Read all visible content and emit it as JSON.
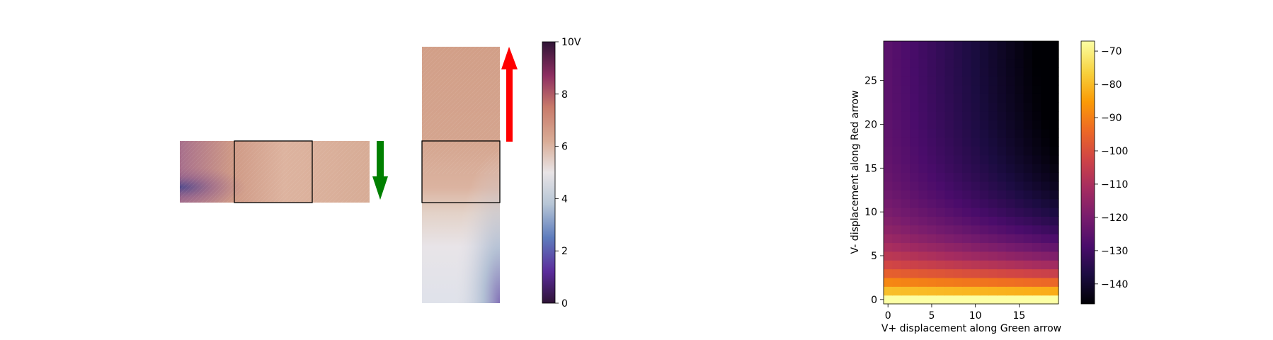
{
  "colors": {
    "green_arrow": "#008000",
    "red_arrow": "#ff0000",
    "frame": "#000000"
  },
  "chart_data": [
    {
      "type": "image",
      "panel": "horizontal potential strip",
      "colormap": "twilight_shifted",
      "colormap_colors": [
        "#2f1436",
        "#5b2c9b",
        "#5e7cbd",
        "#b7c6d6",
        "#e8e4e6",
        "#d9ac96",
        "#c87a6a",
        "#8e2f61",
        "#2f1436"
      ],
      "annotations": [
        {
          "type": "arrow",
          "color": "green",
          "direction": "down"
        }
      ]
    },
    {
      "type": "image",
      "panel": "vertical potential strip",
      "colormap": "twilight_shifted",
      "annotations": [
        {
          "type": "arrow",
          "color": "red",
          "direction": "up"
        }
      ],
      "colorbar": {
        "vmin": 0,
        "vmax": 10,
        "ticks": [
          0,
          2,
          4,
          6,
          8
        ],
        "tick_labels": [
          "0",
          "2",
          "4",
          "6",
          "8"
        ],
        "top_label": "10V"
      }
    },
    {
      "type": "heatmap",
      "colormap": "inferno",
      "colormap_colors": [
        "#000004",
        "#1b0c41",
        "#4a0c6b",
        "#781c6d",
        "#a52c60",
        "#cf4446",
        "#ed6925",
        "#fb9b06",
        "#f7d13d",
        "#fcffa4"
      ],
      "xlabel": "V+ displacement along Green arrow",
      "ylabel": "V- displacement along Red arrow",
      "x_ticks": [
        0,
        5,
        10,
        15
      ],
      "y_ticks": [
        0,
        5,
        10,
        15,
        20,
        25
      ],
      "xlim": [
        -0.5,
        19.5
      ],
      "ylim": [
        -0.5,
        29.5
      ],
      "grid": false,
      "value_range": [
        -146,
        -67
      ],
      "colorbar": {
        "ticks": [
          -70,
          -80,
          -90,
          -100,
          -110,
          -120,
          -130,
          -140
        ],
        "tick_labels": [
          "−70",
          "−80",
          "−90",
          "−100",
          "−110",
          "−120",
          "−130",
          "−140"
        ]
      }
    }
  ]
}
